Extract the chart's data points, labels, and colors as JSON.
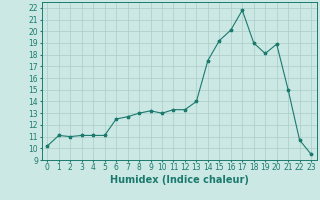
{
  "x": [
    0,
    1,
    2,
    3,
    4,
    5,
    6,
    7,
    8,
    9,
    10,
    11,
    12,
    13,
    14,
    15,
    16,
    17,
    18,
    19,
    20,
    21,
    22,
    23
  ],
  "y": [
    10.2,
    11.1,
    11.0,
    11.1,
    11.1,
    11.1,
    12.5,
    12.7,
    13.0,
    13.2,
    13.0,
    13.3,
    13.3,
    14.0,
    17.5,
    19.2,
    20.1,
    21.8,
    19.0,
    18.1,
    18.9,
    15.0,
    10.7,
    9.5
  ],
  "xlim": [
    -0.5,
    23.5
  ],
  "ylim": [
    9,
    22.5
  ],
  "yticks": [
    9,
    10,
    11,
    12,
    13,
    14,
    15,
    16,
    17,
    18,
    19,
    20,
    21,
    22
  ],
  "xticks": [
    0,
    1,
    2,
    3,
    4,
    5,
    6,
    7,
    8,
    9,
    10,
    11,
    12,
    13,
    14,
    15,
    16,
    17,
    18,
    19,
    20,
    21,
    22,
    23
  ],
  "xlabel": "Humidex (Indice chaleur)",
  "line_color": "#1a7a6e",
  "marker": "*",
  "bg_color": "#cce8e4",
  "grid_color": "#aaccc8",
  "tick_label_fontsize": 5.5,
  "xlabel_fontsize": 7.0
}
